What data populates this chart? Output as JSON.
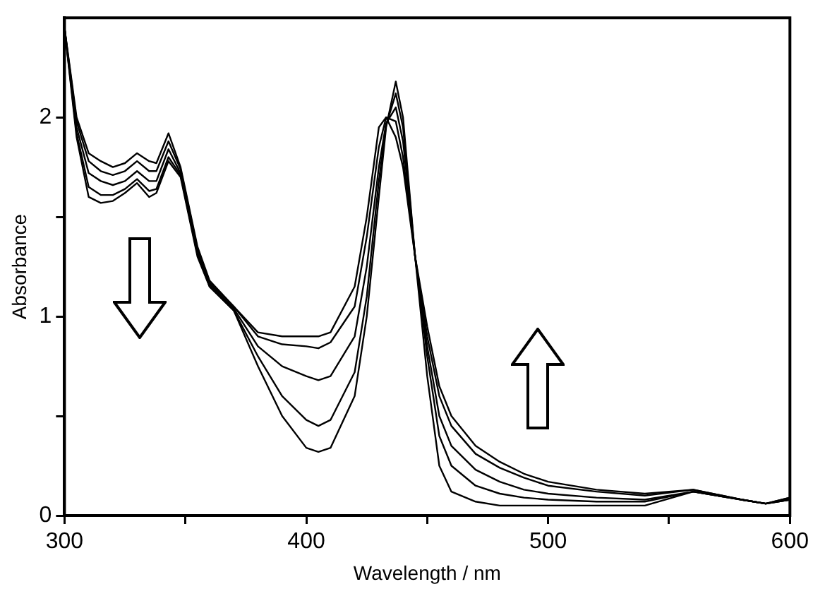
{
  "chart_data": {
    "type": "line",
    "xlabel": "Wavelength / nm",
    "ylabel": "Absorbance",
    "x": [
      300,
      305,
      310,
      315,
      320,
      325,
      330,
      335,
      338,
      343,
      348,
      355,
      360,
      370,
      380,
      390,
      400,
      405,
      410,
      420,
      425,
      430,
      433,
      437,
      440,
      445,
      450,
      455,
      460,
      470,
      480,
      490,
      500,
      520,
      540,
      560,
      580,
      590,
      600
    ],
    "series": [
      {
        "color": "#000000",
        "values": [
          2.45,
          2.0,
          1.82,
          1.78,
          1.75,
          1.77,
          1.82,
          1.78,
          1.77,
          1.92,
          1.75,
          1.35,
          1.18,
          1.05,
          0.92,
          0.9,
          0.9,
          0.9,
          0.92,
          1.15,
          1.5,
          1.95,
          2.0,
          1.9,
          1.75,
          1.3,
          0.7,
          0.25,
          0.12,
          0.07,
          0.05,
          0.05,
          0.05,
          0.05,
          0.05,
          0.12,
          0.08,
          0.06,
          0.08
        ]
      },
      {
        "color": "#000000",
        "values": [
          2.45,
          1.98,
          1.78,
          1.73,
          1.71,
          1.73,
          1.78,
          1.73,
          1.73,
          1.88,
          1.74,
          1.34,
          1.17,
          1.05,
          0.9,
          0.86,
          0.85,
          0.84,
          0.87,
          1.05,
          1.4,
          1.85,
          2.0,
          1.98,
          1.8,
          1.3,
          0.8,
          0.4,
          0.25,
          0.15,
          0.11,
          0.09,
          0.08,
          0.07,
          0.07,
          0.12,
          0.08,
          0.06,
          0.08
        ]
      },
      {
        "color": "#000000",
        "values": [
          2.45,
          1.95,
          1.72,
          1.68,
          1.66,
          1.68,
          1.73,
          1.68,
          1.68,
          1.84,
          1.72,
          1.32,
          1.16,
          1.04,
          0.85,
          0.75,
          0.7,
          0.68,
          0.7,
          0.9,
          1.25,
          1.75,
          1.97,
          2.05,
          1.88,
          1.3,
          0.85,
          0.5,
          0.35,
          0.23,
          0.17,
          0.13,
          0.11,
          0.09,
          0.08,
          0.12,
          0.08,
          0.06,
          0.08
        ]
      },
      {
        "color": "#000000",
        "values": [
          2.45,
          1.92,
          1.65,
          1.61,
          1.61,
          1.64,
          1.69,
          1.63,
          1.64,
          1.8,
          1.71,
          1.31,
          1.15,
          1.03,
          0.8,
          0.6,
          0.48,
          0.45,
          0.48,
          0.72,
          1.1,
          1.68,
          1.96,
          2.12,
          1.95,
          1.3,
          0.9,
          0.6,
          0.45,
          0.31,
          0.24,
          0.19,
          0.15,
          0.12,
          0.1,
          0.13,
          0.08,
          0.06,
          0.09
        ]
      },
      {
        "color": "#000000",
        "values": [
          2.45,
          1.9,
          1.6,
          1.57,
          1.58,
          1.62,
          1.67,
          1.6,
          1.62,
          1.78,
          1.7,
          1.3,
          1.15,
          1.03,
          0.75,
          0.5,
          0.34,
          0.32,
          0.34,
          0.6,
          1.0,
          1.6,
          1.95,
          2.18,
          2.0,
          1.3,
          0.95,
          0.65,
          0.5,
          0.35,
          0.27,
          0.21,
          0.17,
          0.13,
          0.11,
          0.13,
          0.08,
          0.06,
          0.09
        ]
      }
    ],
    "xlim": [
      300,
      600
    ],
    "xticks": [
      300,
      {
        "value": 350,
        "label": null
      },
      400,
      {
        "value": 450,
        "label": null
      },
      500,
      {
        "value": 550,
        "label": null
      },
      600
    ],
    "ylim": [
      0,
      2.5
    ],
    "yticks": [
      0,
      {
        "value": 0.5,
        "label": null
      },
      1,
      {
        "value": 1.5,
        "label": null
      },
      2
    ],
    "legend": false,
    "marker": "none",
    "line_style": "solid"
  }
}
